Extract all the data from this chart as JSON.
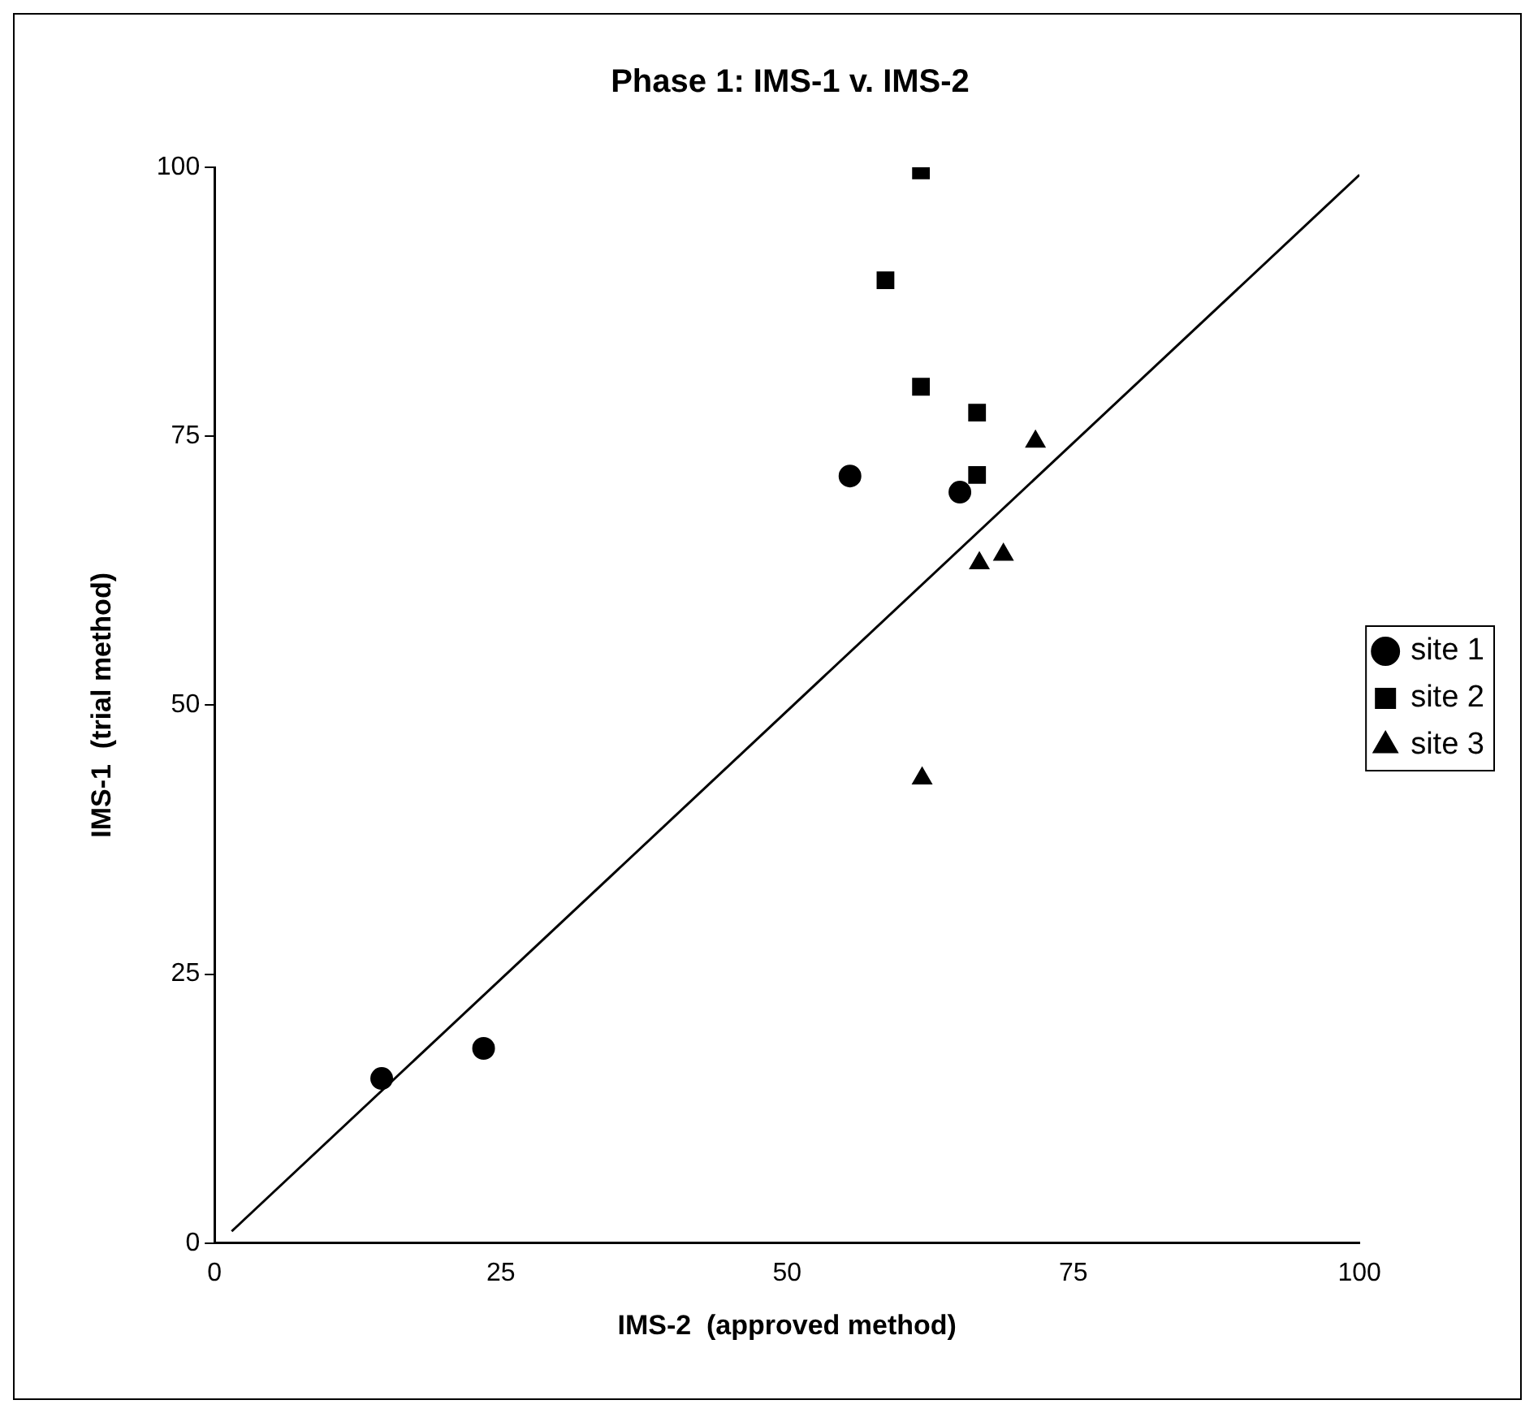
{
  "chart_data": {
    "type": "scatter",
    "title": "Phase 1: IMS-1 v. IMS-2",
    "xlabel": "IMS-2  (approved method)",
    "ylabel": "IMS-1  (trial method)",
    "xlim": [
      0,
      100
    ],
    "xticks": [
      0,
      25,
      50,
      75,
      100
    ],
    "ylim": [
      0,
      100
    ],
    "yticks": [
      0,
      25,
      50,
      75,
      100
    ],
    "grid": false,
    "legend": "right",
    "series": [
      {
        "name": "site 1",
        "color": "#000000",
        "marker": "circle",
        "x": [
          14.6,
          23.5,
          55.5,
          65.1
        ],
        "values": [
          15.3,
          18.1,
          71.3,
          69.8
        ]
      },
      {
        "name": "site 2",
        "color": "#000000",
        "marker": "square",
        "x": [
          61.7,
          58.6,
          61.7,
          66.6,
          66.6
        ],
        "values": [
          99.7,
          89.5,
          79.6,
          77.2,
          71.4
        ]
      },
      {
        "name": "site 3",
        "color": "#000000",
        "marker": "triangle",
        "x": [
          71.7,
          66.8,
          68.9,
          61.8
        ],
        "values": [
          74.5,
          63.2,
          64.0,
          43.2
        ]
      },
      {
        "type": "line",
        "color": "#000000",
        "marker": "none",
        "line_style": "solid",
        "x": [
          1.5,
          100
        ],
        "values": [
          1.1,
          99.3
        ]
      }
    ]
  }
}
